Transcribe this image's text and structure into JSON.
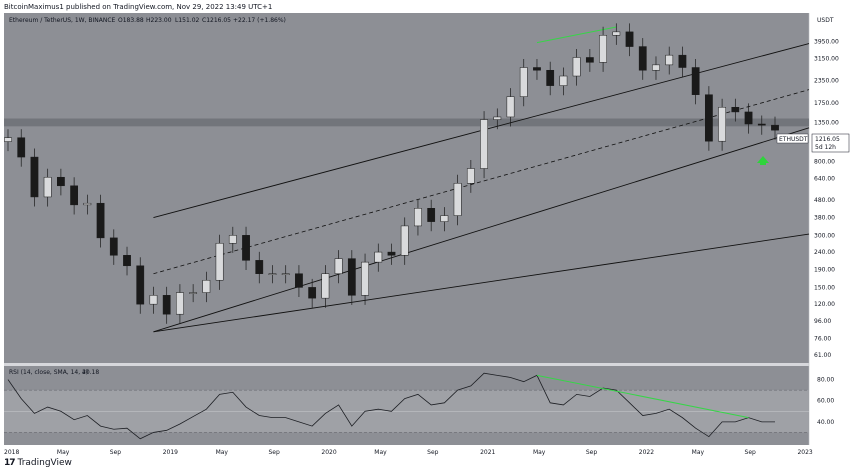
{
  "header": {
    "published_line": "BitcoinMaximus1 published on TradingView.com, Nov 29, 2022 13:49 UTC+1"
  },
  "footer": {
    "brand": "TradingView",
    "logo_glyph": "17"
  },
  "colors": {
    "background": "#8d8f95",
    "rsi_band": "#9fa1a6",
    "candle": "#1a1a1a",
    "trendline": "#111111",
    "resistance_band": "#6c6e74",
    "green_line": "#37d548",
    "green_arrow": "#2fd43c"
  },
  "chart_data": [
    {
      "type": "candlestick",
      "title": "Ethereum / TetherUS, 1W, BINANCE",
      "ohlc_label": {
        "open": "O183.88",
        "high": "H223.00",
        "low": "L151.02",
        "close": "C1216.05",
        "change": "+22.17 (+1.86%)"
      },
      "currency": "USDT",
      "y_scale": "log",
      "y_ticks": [
        "5200.00",
        "3950.00",
        "3150.00",
        "2350.00",
        "1750.00",
        "1350.00",
        "1000.00",
        "800.00",
        "640.00",
        "480.00",
        "380.00",
        "300.00",
        "240.00",
        "190.00",
        "150.00",
        "120.00",
        "96.00",
        "76.00",
        "61.00"
      ],
      "x_ticks": [
        "2018",
        "May",
        "Sep",
        "2019",
        "May",
        "Sep",
        "2020",
        "May",
        "Sep",
        "2021",
        "May",
        "Sep",
        "2022",
        "May",
        "Sep",
        "2023"
      ],
      "price_label": {
        "symbol": "ETHUSDT",
        "price": "1216.05",
        "countdown": "5d 12h"
      },
      "price_series": {
        "x": [
          "2018-01",
          "2018-02",
          "2018-03",
          "2018-04",
          "2018-05",
          "2018-06",
          "2018-07",
          "2018-08",
          "2018-09",
          "2018-10",
          "2018-11",
          "2018-12",
          "2019-01",
          "2019-02",
          "2019-03",
          "2019-04",
          "2019-05",
          "2019-06",
          "2019-07",
          "2019-08",
          "2019-09",
          "2019-10",
          "2019-11",
          "2019-12",
          "2020-01",
          "2020-02",
          "2020-03",
          "2020-04",
          "2020-05",
          "2020-06",
          "2020-07",
          "2020-08",
          "2020-09",
          "2020-10",
          "2020-11",
          "2020-12",
          "2021-01",
          "2021-02",
          "2021-03",
          "2021-04",
          "2021-05",
          "2021-06",
          "2021-07",
          "2021-08",
          "2021-09",
          "2021-10",
          "2021-11",
          "2021-12",
          "2022-01",
          "2022-02",
          "2022-03",
          "2022-04",
          "2022-05",
          "2022-06",
          "2022-07",
          "2022-08",
          "2022-09",
          "2022-10",
          "2022-11"
        ],
        "values": [
          1100,
          850,
          500,
          650,
          580,
          450,
          460,
          290,
          230,
          200,
          120,
          135,
          105,
          140,
          140,
          165,
          270,
          300,
          215,
          180,
          180,
          180,
          150,
          130,
          180,
          220,
          135,
          210,
          240,
          230,
          340,
          430,
          360,
          390,
          600,
          730,
          1400,
          1450,
          1900,
          2800,
          2700,
          2200,
          2500,
          3200,
          3000,
          4300,
          4500,
          3700,
          2700,
          2900,
          3300,
          2800,
          1950,
          1050,
          1650,
          1550,
          1320,
          1300,
          1216
        ]
      },
      "channel": {
        "lower_start": {
          "date": "2018-12",
          "price": 83
        },
        "lower_end": {
          "date": "2022-11",
          "price": 1090
        },
        "note_lines": [
          "upper channel line",
          "median dashed line",
          "parallel support line"
        ]
      },
      "resistance_zone": {
        "low": 1280,
        "high": 1420
      },
      "green_trendline_price": {
        "start": {
          "date": "2021-05",
          "price": 3900
        },
        "end": {
          "date": "2021-11",
          "price": 4800
        }
      }
    },
    {
      "type": "line",
      "title": "RSI (14, close, SMA, 14, 2)",
      "last_value": "40.18",
      "y_ticks": [
        "80.00",
        "60.00",
        "40.00"
      ],
      "levels": [
        70,
        50,
        30
      ],
      "x": [
        "2018-01",
        "2018-02",
        "2018-03",
        "2018-04",
        "2018-05",
        "2018-06",
        "2018-07",
        "2018-08",
        "2018-09",
        "2018-10",
        "2018-11",
        "2018-12",
        "2019-01",
        "2019-02",
        "2019-03",
        "2019-04",
        "2019-05",
        "2019-06",
        "2019-07",
        "2019-08",
        "2019-09",
        "2019-10",
        "2019-11",
        "2019-12",
        "2020-01",
        "2020-02",
        "2020-03",
        "2020-04",
        "2020-05",
        "2020-06",
        "2020-07",
        "2020-08",
        "2020-09",
        "2020-10",
        "2020-11",
        "2020-12",
        "2021-01",
        "2021-02",
        "2021-03",
        "2021-04",
        "2021-05",
        "2021-06",
        "2021-07",
        "2021-08",
        "2021-09",
        "2021-10",
        "2021-11",
        "2021-12",
        "2022-01",
        "2022-02",
        "2022-03",
        "2022-04",
        "2022-05",
        "2022-06",
        "2022-07",
        "2022-08",
        "2022-09",
        "2022-10",
        "2022-11"
      ],
      "values": [
        80,
        62,
        48,
        54,
        50,
        42,
        46,
        36,
        33,
        34,
        24,
        30,
        32,
        38,
        45,
        52,
        66,
        68,
        54,
        46,
        44,
        44,
        40,
        36,
        48,
        56,
        36,
        50,
        52,
        50,
        62,
        66,
        56,
        58,
        70,
        74,
        86,
        84,
        82,
        78,
        84,
        58,
        56,
        66,
        64,
        72,
        70,
        58,
        46,
        48,
        52,
        44,
        34,
        26,
        40,
        40,
        44,
        40,
        40
      ]
    }
  ]
}
